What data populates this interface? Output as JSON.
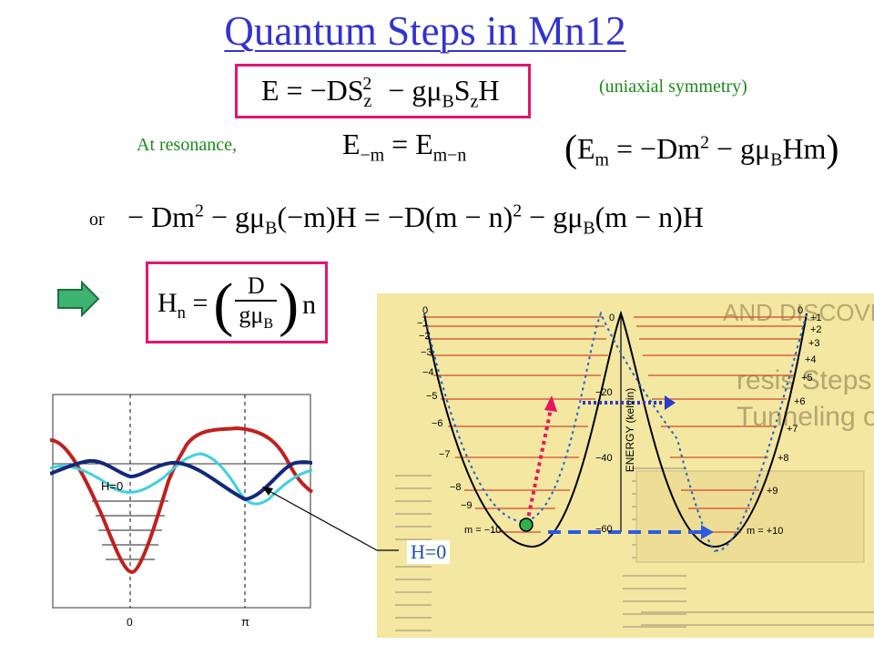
{
  "title": "Quantum Steps in Mn12",
  "uniaxial_note": "(uniaxial symmetry)",
  "at_resonance": "At resonance,",
  "or_label": "or",
  "eq_hamiltonian": "E = −DS²_z − gμ_B S_z H",
  "eq_resonance": "E₋ₘ = Eₘ₋ₙ",
  "eq_energy": "(Eₘ = −Dm² − gμ_B Hm)",
  "eq_expanded": "− Dm² − gμ_B(−m)H = −D(m − n)² − gμ_B(m − n)H",
  "eq_field": "Hₙ = (D / gμ_B) n",
  "left_plot": {
    "curve_label": "H=0",
    "tick_zero": "0",
    "tick_pi": "π"
  },
  "callout_label": "H=0",
  "scan": {
    "top_left_labels": [
      "0",
      "−1",
      "−2",
      "−3",
      "−4",
      "−5",
      "−6",
      "−7",
      "−8",
      "−9",
      "m = −10"
    ],
    "right_labels": [
      "+1",
      "+2",
      "+3",
      "+4",
      "+5",
      "+6",
      "+7",
      "+8",
      "+9",
      "m = +10"
    ],
    "top_right_zero": "0",
    "axis_label": "ENERGY (kelvin)",
    "axis_ticks": [
      "0",
      "−20",
      "−40",
      "−60"
    ],
    "bg_heading_1": "AND DISCOVERY",
    "bg_heading_2": "resis Steps Demonstrate",
    "bg_heading_3": "Tunneling of Molecular Spins"
  },
  "colors": {
    "title": "#3333cc",
    "box_border": "#e0176f",
    "green_text": "#1a8a1a",
    "arrow_fill": "#3cb371",
    "red_curve": "#c0201e",
    "navy_curve": "#14287a",
    "cyan_curve": "#3fd0e0",
    "scan_bg": "#f3e7a2"
  }
}
